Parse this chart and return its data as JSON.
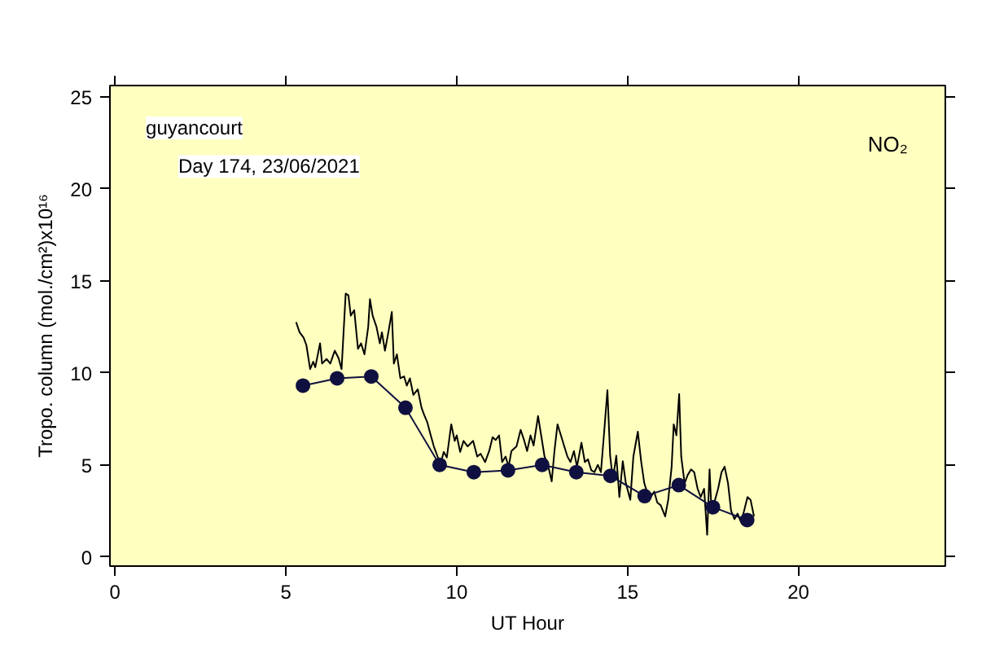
{
  "chart_data": {
    "type": "line",
    "xlabel": "UT Hour",
    "ylabel": "Tropo. column (mol./cm²)x10¹⁶",
    "xlim": [
      -0.15,
      24.3
    ],
    "ylim": [
      -0.5,
      25.6
    ],
    "xticks": [
      0,
      5,
      10,
      15,
      20
    ],
    "yticks": [
      0,
      5,
      10,
      15,
      20,
      25
    ],
    "grid": false,
    "annotations": [
      "guyancourt",
      "Day 174, 23/06/2021",
      "NO₂"
    ],
    "series": [
      {
        "color": "#000000",
        "marker": "none",
        "x": [
          5.3,
          5.4,
          5.52,
          5.6,
          5.71,
          5.8,
          5.86,
          6.0,
          6.06,
          6.19,
          6.3,
          6.43,
          6.54,
          6.63,
          6.75,
          6.83,
          6.9,
          7.0,
          7.11,
          7.2,
          7.3,
          7.41,
          7.46,
          7.54,
          7.65,
          7.75,
          7.81,
          7.9,
          8.0,
          8.1,
          8.16,
          8.25,
          8.35,
          8.46,
          8.54,
          8.63,
          8.73,
          8.86,
          8.97,
          9.05,
          9.14,
          9.24,
          9.33,
          9.44,
          9.52,
          9.62,
          9.71,
          9.84,
          9.94,
          10.0,
          10.1,
          10.2,
          10.32,
          10.48,
          10.6,
          10.7,
          10.83,
          10.95,
          11.05,
          11.14,
          11.24,
          11.33,
          11.43,
          11.52,
          11.6,
          11.75,
          11.87,
          11.97,
          12.06,
          12.16,
          12.25,
          12.38,
          12.48,
          12.57,
          12.67,
          12.78,
          12.86,
          12.95,
          13.05,
          13.14,
          13.24,
          13.33,
          13.43,
          13.52,
          13.65,
          13.75,
          13.84,
          13.94,
          14.03,
          14.13,
          14.22,
          14.32,
          14.41,
          14.49,
          14.57,
          14.67,
          14.76,
          14.86,
          14.95,
          15.08,
          15.17,
          15.3,
          15.4,
          15.49,
          15.59,
          15.68,
          15.78,
          15.87,
          15.97,
          16.1,
          16.19,
          16.29,
          16.35,
          16.43,
          16.51,
          16.57,
          16.67,
          16.76,
          16.86,
          16.95,
          17.05,
          17.14,
          17.24,
          17.33,
          17.4,
          17.46,
          17.56,
          17.65,
          17.75,
          17.84,
          17.94,
          18.03,
          18.13,
          18.22,
          18.32,
          18.41,
          18.51,
          18.6,
          18.7
        ],
        "values": [
          12.75,
          12.2,
          11.9,
          11.5,
          10.2,
          10.6,
          10.3,
          11.6,
          10.5,
          10.75,
          10.5,
          11.2,
          10.8,
          10.2,
          14.3,
          14.2,
          13.1,
          13.4,
          11.3,
          11.6,
          11.0,
          12.5,
          14.0,
          13.1,
          12.5,
          11.6,
          12.2,
          11.2,
          12.2,
          13.3,
          10.5,
          11.0,
          9.7,
          9.8,
          9.3,
          9.7,
          8.8,
          9.1,
          8.1,
          7.7,
          7.3,
          6.6,
          6.0,
          5.45,
          5.0,
          5.7,
          5.4,
          7.2,
          6.3,
          6.6,
          5.7,
          6.3,
          6.0,
          6.3,
          5.45,
          5.6,
          5.15,
          5.75,
          6.5,
          6.35,
          6.6,
          5.15,
          5.45,
          4.9,
          5.75,
          6.0,
          6.9,
          6.35,
          5.75,
          6.6,
          6.05,
          7.65,
          6.5,
          5.45,
          5.0,
          4.1,
          5.75,
          7.2,
          6.6,
          6.05,
          5.45,
          5.15,
          5.75,
          4.9,
          6.2,
          5.15,
          5.3,
          4.7,
          4.6,
          5.0,
          4.6,
          6.9,
          9.05,
          5.5,
          4.2,
          5.5,
          3.25,
          5.2,
          4.0,
          3.1,
          5.45,
          6.8,
          5.15,
          4.0,
          3.4,
          3.25,
          3.55,
          2.95,
          2.8,
          2.2,
          3.1,
          4.9,
          7.2,
          6.6,
          8.85,
          5.45,
          4.0,
          4.45,
          4.75,
          4.6,
          3.7,
          3.25,
          3.7,
          1.2,
          4.75,
          2.35,
          3.1,
          3.7,
          4.6,
          4.9,
          4.0,
          2.5,
          2.05,
          2.35,
          1.9,
          2.5,
          3.25,
          3.1,
          2.2
        ]
      },
      {
        "color": "#101040",
        "marker": "circle",
        "x": [
          5.5,
          6.5,
          7.5,
          8.5,
          9.5,
          10.5,
          11.5,
          12.5,
          13.5,
          14.5,
          15.5,
          16.5,
          17.5,
          18.5
        ],
        "values": [
          9.3,
          9.7,
          9.8,
          8.1,
          5.0,
          4.6,
          4.7,
          5.0,
          4.6,
          4.4,
          3.3,
          3.9,
          2.7,
          2.0
        ]
      }
    ]
  }
}
